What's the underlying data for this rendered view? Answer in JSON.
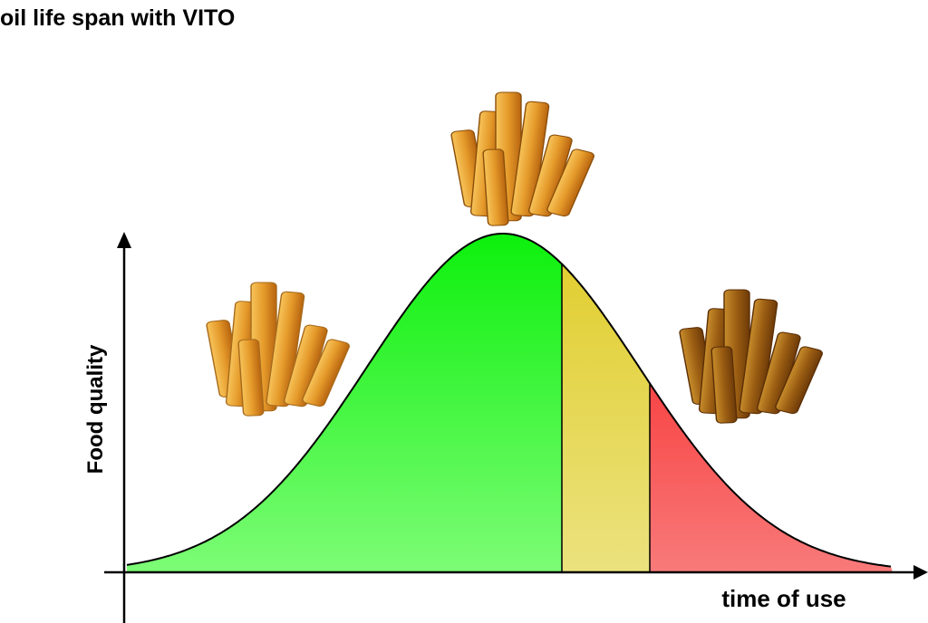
{
  "title": "oil life span with VITO",
  "y_axis_label": "Food quality",
  "x_axis_label": "time of use"
}
